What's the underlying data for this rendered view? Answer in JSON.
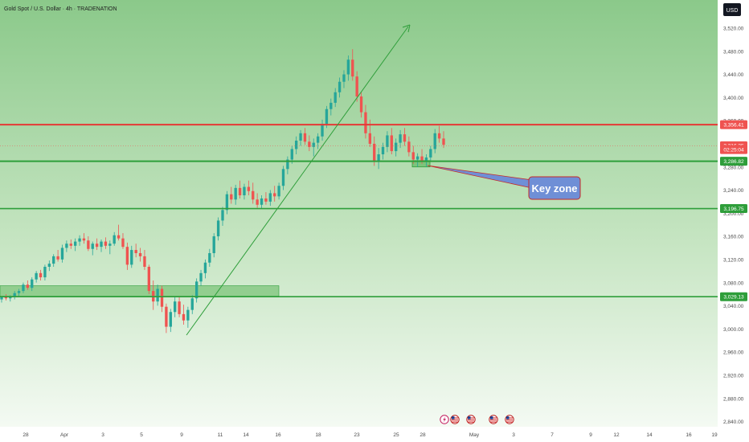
{
  "header": {
    "title": "Gold Spot / U.S. Dollar · 4h · TRADENATION",
    "currency_button": "USD"
  },
  "colors": {
    "background_top": "#8bc98a",
    "background_bottom": "#f4faf3",
    "bull": "#26a69a",
    "bear": "#ef5350",
    "resistance": "#e53935",
    "support": "#2e9e3a",
    "zone_fill": "#7cc47a",
    "callout": "#6f8fd6"
  },
  "icons": [
    "lightning-icon",
    "us-flag-icon",
    "us-flag-icon",
    "us-flag-icon",
    "us-flag-icon"
  ],
  "chart_data": {
    "type": "candlestick",
    "title": "Gold Spot / U.S. Dollar · 4h · TRADENATION",
    "ylim": [
      2820,
      3540
    ],
    "y_ticks": [
      "3,520.00",
      "3,480.00",
      "3,440.00",
      "3,400.00",
      "3,360.00",
      "3,320.00",
      "3,280.00",
      "3,240.00",
      "3,200.00",
      "3,160.00",
      "3,120.00",
      "3,080.00",
      "3,040.00",
      "3,000.00",
      "2,960.00",
      "2,920.00",
      "2,880.00",
      "2,840.00"
    ],
    "x_ticks": [
      "28",
      "Apr",
      "3",
      "5",
      "9",
      "11",
      "14",
      "16",
      "18",
      "23",
      "25",
      "28",
      "May",
      "3",
      "7",
      "9",
      "12",
      "14",
      "16",
      "19"
    ],
    "price_labels": [
      {
        "text": "3,356.41",
        "value": 3356.41,
        "kind": "resistance"
      },
      {
        "text": "3,316.25",
        "value": 3316.25,
        "kind": "current"
      },
      {
        "text": "02:25:04",
        "value": 3309,
        "kind": "countdown"
      },
      {
        "text": "3,286.82",
        "value": 3286.82,
        "kind": "support"
      },
      {
        "text": "3,196.75",
        "value": 3196.75,
        "kind": "support"
      },
      {
        "text": "3,029.13",
        "value": 3029.13,
        "kind": "support"
      }
    ],
    "annotation": {
      "text": "Key zone"
    },
    "trendline": {
      "from": 2970,
      "to": 3510
    },
    "demand_zone": {
      "low": 3030,
      "high": 3050
    },
    "candles": [
      [
        3024,
        3030,
        3018,
        3028
      ],
      [
        3028,
        3034,
        3022,
        3026
      ],
      [
        3026,
        3032,
        3020,
        3030
      ],
      [
        3030,
        3040,
        3024,
        3036
      ],
      [
        3036,
        3044,
        3030,
        3040
      ],
      [
        3040,
        3056,
        3036,
        3052
      ],
      [
        3052,
        3060,
        3042,
        3046
      ],
      [
        3046,
        3066,
        3040,
        3062
      ],
      [
        3062,
        3078,
        3056,
        3074
      ],
      [
        3074,
        3080,
        3060,
        3066
      ],
      [
        3066,
        3090,
        3060,
        3086
      ],
      [
        3086,
        3098,
        3078,
        3092
      ],
      [
        3092,
        3110,
        3086,
        3106
      ],
      [
        3106,
        3118,
        3096,
        3100
      ],
      [
        3100,
        3128,
        3094,
        3122
      ],
      [
        3122,
        3136,
        3114,
        3130
      ],
      [
        3130,
        3138,
        3120,
        3126
      ],
      [
        3126,
        3140,
        3116,
        3134
      ],
      [
        3134,
        3146,
        3126,
        3140
      ],
      [
        3140,
        3150,
        3130,
        3136
      ],
      [
        3136,
        3144,
        3116,
        3120
      ],
      [
        3120,
        3134,
        3108,
        3130
      ],
      [
        3130,
        3140,
        3118,
        3124
      ],
      [
        3124,
        3138,
        3114,
        3134
      ],
      [
        3134,
        3142,
        3120,
        3126
      ],
      [
        3126,
        3136,
        3110,
        3130
      ],
      [
        3130,
        3152,
        3126,
        3146
      ],
      [
        3146,
        3166,
        3136,
        3140
      ],
      [
        3140,
        3150,
        3120,
        3124
      ],
      [
        3124,
        3132,
        3080,
        3090
      ],
      [
        3090,
        3126,
        3084,
        3118
      ],
      [
        3118,
        3130,
        3104,
        3112
      ],
      [
        3112,
        3122,
        3096,
        3106
      ],
      [
        3106,
        3118,
        3080,
        3086
      ],
      [
        3086,
        3090,
        3034,
        3040
      ],
      [
        3040,
        3060,
        3004,
        3020
      ],
      [
        3020,
        3052,
        3012,
        3044
      ],
      [
        3044,
        3050,
        3000,
        3010
      ],
      [
        3010,
        3016,
        2960,
        2972
      ],
      [
        2972,
        3006,
        2962,
        3000
      ],
      [
        3000,
        3028,
        2990,
        3020
      ],
      [
        3020,
        3030,
        2990,
        2996
      ],
      [
        2996,
        3014,
        2976,
        2984
      ],
      [
        2984,
        3010,
        2970,
        3004
      ],
      [
        3004,
        3032,
        2996,
        3026
      ],
      [
        3026,
        3064,
        3018,
        3058
      ],
      [
        3058,
        3080,
        3050,
        3074
      ],
      [
        3074,
        3100,
        3064,
        3094
      ],
      [
        3094,
        3120,
        3086,
        3112
      ],
      [
        3112,
        3150,
        3104,
        3144
      ],
      [
        3144,
        3180,
        3136,
        3174
      ],
      [
        3174,
        3200,
        3164,
        3194
      ],
      [
        3194,
        3230,
        3186,
        3224
      ],
      [
        3224,
        3238,
        3206,
        3214
      ],
      [
        3214,
        3242,
        3204,
        3236
      ],
      [
        3236,
        3250,
        3216,
        3222
      ],
      [
        3222,
        3244,
        3214,
        3238
      ],
      [
        3238,
        3250,
        3222,
        3230
      ],
      [
        3230,
        3246,
        3206,
        3214
      ],
      [
        3214,
        3226,
        3198,
        3204
      ],
      [
        3204,
        3222,
        3196,
        3216
      ],
      [
        3216,
        3228,
        3204,
        3210
      ],
      [
        3210,
        3232,
        3202,
        3226
      ],
      [
        3226,
        3240,
        3210,
        3220
      ],
      [
        3220,
        3246,
        3214,
        3240
      ],
      [
        3240,
        3278,
        3232,
        3272
      ],
      [
        3272,
        3296,
        3262,
        3290
      ],
      [
        3290,
        3316,
        3282,
        3310
      ],
      [
        3310,
        3334,
        3300,
        3326
      ],
      [
        3326,
        3346,
        3316,
        3340
      ],
      [
        3340,
        3350,
        3318,
        3324
      ],
      [
        3324,
        3336,
        3306,
        3314
      ],
      [
        3314,
        3330,
        3296,
        3322
      ],
      [
        3322,
        3340,
        3310,
        3334
      ],
      [
        3334,
        3366,
        3326,
        3358
      ],
      [
        3358,
        3392,
        3350,
        3386
      ],
      [
        3386,
        3406,
        3374,
        3398
      ],
      [
        3398,
        3426,
        3390,
        3418
      ],
      [
        3418,
        3446,
        3408,
        3438
      ],
      [
        3438,
        3460,
        3426,
        3452
      ],
      [
        3452,
        3488,
        3440,
        3480
      ],
      [
        3480,
        3500,
        3440,
        3448
      ],
      [
        3448,
        3458,
        3400,
        3410
      ],
      [
        3410,
        3418,
        3370,
        3380
      ],
      [
        3380,
        3394,
        3330,
        3340
      ],
      [
        3340,
        3366,
        3314,
        3320
      ],
      [
        3320,
        3334,
        3278,
        3288
      ],
      [
        3288,
        3312,
        3272,
        3300
      ],
      [
        3300,
        3322,
        3290,
        3314
      ],
      [
        3314,
        3344,
        3304,
        3336
      ],
      [
        3336,
        3350,
        3300,
        3306
      ],
      [
        3306,
        3330,
        3296,
        3322
      ],
      [
        3322,
        3346,
        3312,
        3338
      ],
      [
        3338,
        3350,
        3316,
        3324
      ],
      [
        3324,
        3334,
        3296,
        3304
      ],
      [
        3304,
        3316,
        3282,
        3290
      ],
      [
        3290,
        3302,
        3276,
        3296
      ],
      [
        3296,
        3310,
        3282,
        3288
      ],
      [
        3288,
        3300,
        3276,
        3294
      ],
      [
        3294,
        3316,
        3288,
        3310
      ],
      [
        3310,
        3348,
        3302,
        3340
      ],
      [
        3340,
        3354,
        3322,
        3330
      ],
      [
        3330,
        3344,
        3312,
        3318
      ]
    ]
  }
}
